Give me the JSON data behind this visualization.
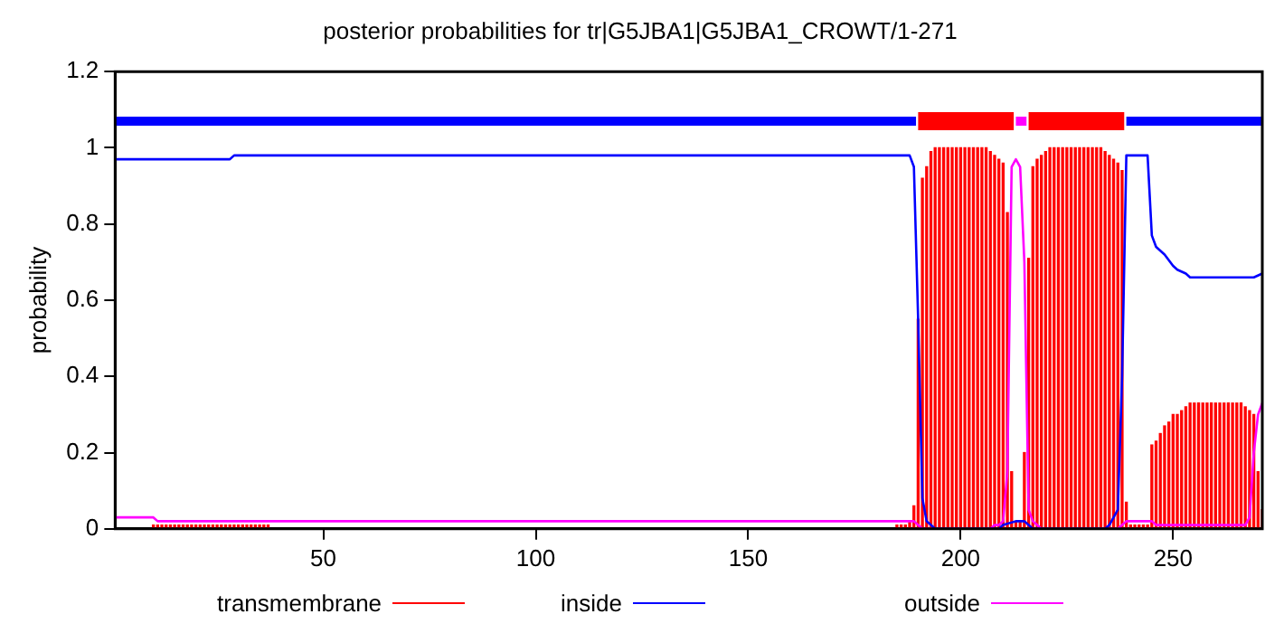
{
  "chart_data": {
    "type": "line",
    "title": "posterior probabilities for tr|G5JBA1|G5JBA1_CROWT/1-271",
    "ylabel": "probability",
    "xlim": [
      1,
      271
    ],
    "xticks": [
      50,
      100,
      150,
      200,
      250
    ],
    "ylim": [
      0,
      1.2
    ],
    "yticks": [
      0,
      0.2,
      0.4,
      0.6,
      0.8,
      1,
      1.2
    ],
    "grid": false,
    "legend": "bottom",
    "series": [
      {
        "name": "transmembrane",
        "type": "bar",
        "color": "#ff0000",
        "x": [
          10,
          11,
          12,
          13,
          14,
          15,
          16,
          17,
          18,
          19,
          20,
          21,
          22,
          23,
          24,
          25,
          26,
          27,
          28,
          29,
          30,
          31,
          32,
          33,
          34,
          35,
          36,
          37,
          185,
          186,
          187,
          188,
          189,
          190,
          191,
          192,
          193,
          194,
          195,
          196,
          197,
          198,
          199,
          200,
          201,
          202,
          203,
          204,
          205,
          206,
          207,
          208,
          209,
          210,
          211,
          212,
          213,
          214,
          215,
          216,
          217,
          218,
          219,
          220,
          221,
          222,
          223,
          224,
          225,
          226,
          227,
          228,
          229,
          230,
          231,
          232,
          233,
          234,
          235,
          236,
          237,
          238,
          239,
          240,
          241,
          242,
          243,
          244,
          245,
          246,
          247,
          248,
          249,
          250,
          251,
          252,
          253,
          254,
          255,
          256,
          257,
          258,
          259,
          260,
          261,
          262,
          263,
          264,
          265,
          266,
          267,
          268,
          269,
          270,
          271
        ],
        "values": [
          0.01,
          0.01,
          0.01,
          0.01,
          0.01,
          0.01,
          0.01,
          0.01,
          0.01,
          0.01,
          0.01,
          0.01,
          0.01,
          0.01,
          0.01,
          0.01,
          0.01,
          0.01,
          0.01,
          0.01,
          0.01,
          0.01,
          0.01,
          0.01,
          0.01,
          0.01,
          0.01,
          0.01,
          0.01,
          0.01,
          0.01,
          0.02,
          0.06,
          0.55,
          0.92,
          0.95,
          0.99,
          1,
          1,
          1,
          1,
          1,
          1,
          1,
          1,
          1,
          1,
          1,
          1,
          1,
          0.99,
          0.98,
          0.97,
          0.96,
          0.83,
          0.15,
          0.02,
          0.02,
          0.2,
          0.71,
          0.95,
          0.97,
          0.98,
          0.99,
          1,
          1,
          1,
          1,
          1,
          1,
          1,
          1,
          1,
          1,
          1,
          1,
          1,
          0.99,
          0.98,
          0.97,
          0.96,
          0.94,
          0.07,
          0.01,
          0.01,
          0.01,
          0.01,
          0.01,
          0.22,
          0.23,
          0.25,
          0.27,
          0.28,
          0.3,
          0.3,
          0.31,
          0.32,
          0.33,
          0.33,
          0.33,
          0.33,
          0.33,
          0.33,
          0.33,
          0.33,
          0.33,
          0.33,
          0.33,
          0.33,
          0.33,
          0.32,
          0.31,
          0.3,
          0.15,
          0.05
        ]
      },
      {
        "name": "inside",
        "color": "#0000ff",
        "x": [
          1,
          28,
          29,
          188,
          189,
          190,
          191,
          192,
          193,
          194,
          209,
          210,
          213,
          215,
          216,
          217,
          234,
          235,
          237,
          238,
          239,
          244,
          245,
          246,
          247,
          248,
          250,
          251,
          253,
          254,
          269,
          271
        ],
        "values": [
          0.97,
          0.97,
          0.98,
          0.98,
          0.95,
          0.55,
          0.08,
          0.02,
          0.01,
          0,
          0,
          0.01,
          0.02,
          0.02,
          0.01,
          0,
          0,
          0.01,
          0.05,
          0.4,
          0.98,
          0.98,
          0.77,
          0.74,
          0.73,
          0.72,
          0.69,
          0.68,
          0.67,
          0.66,
          0.66,
          0.67
        ]
      },
      {
        "name": "outside",
        "color": "#ff00ff",
        "x": [
          1,
          10,
          11,
          189,
          190,
          191,
          207,
          208,
          209,
          210,
          211,
          212,
          213,
          214,
          215,
          216,
          217,
          218,
          219,
          237,
          238,
          239,
          240,
          245,
          246,
          266,
          267,
          268,
          269,
          270,
          271
        ],
        "values": [
          0.03,
          0.03,
          0.02,
          0.02,
          0.01,
          0,
          0,
          0.01,
          0.01,
          0.02,
          0.15,
          0.95,
          0.97,
          0.95,
          0.7,
          0.05,
          0.02,
          0.01,
          0,
          0,
          0.01,
          0.02,
          0.02,
          0.02,
          0.01,
          0.01,
          0.01,
          0.03,
          0.2,
          0.3,
          0.33
        ]
      },
      {
        "color": "#0000ff",
        "x": [
          1,
          189.5
        ],
        "values": [
          1.07,
          1.07
        ]
      },
      {
        "color": "#ff0000",
        "x": [
          190,
          212.5
        ],
        "values": [
          1.07,
          1.07
        ]
      },
      {
        "color": "#ff00ff",
        "x": [
          213,
          215.5
        ],
        "values": [
          1.07,
          1.07
        ]
      },
      {
        "color": "#ff0000",
        "x": [
          216,
          238.5
        ],
        "values": [
          1.07,
          1.07
        ]
      },
      {
        "color": "#0000ff",
        "x": [
          239,
          271
        ],
        "values": [
          1.07,
          1.07
        ]
      }
    ]
  }
}
